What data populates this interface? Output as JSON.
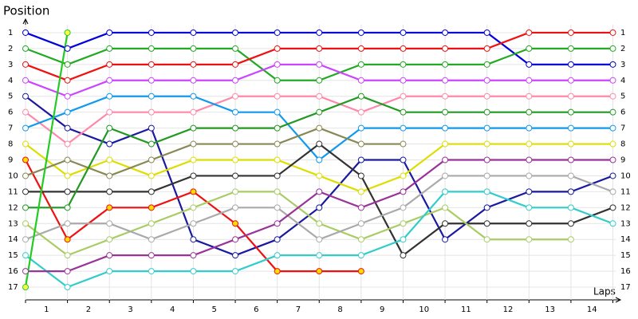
{
  "chart_data": {
    "type": "line",
    "title": "Position",
    "x_label": "Laps",
    "x": [
      0,
      1,
      2,
      3,
      4,
      5,
      6,
      7,
      8,
      9,
      10,
      11,
      12,
      13,
      14
    ],
    "xlim": [
      0,
      14.15
    ],
    "xticks": [
      {
        "value": 0.5,
        "label": "1"
      },
      {
        "value": 1.5,
        "label": "2"
      },
      {
        "value": 2.5,
        "label": "3"
      },
      {
        "value": 3.5,
        "label": "4"
      },
      {
        "value": 4.5,
        "label": "5"
      },
      {
        "value": 5.5,
        "label": "6"
      },
      {
        "value": 6.5,
        "label": "7"
      },
      {
        "value": 7.5,
        "label": "8"
      },
      {
        "value": 8.5,
        "label": "9"
      },
      {
        "value": 9.5,
        "label": "10"
      },
      {
        "value": 10.5,
        "label": "11"
      },
      {
        "value": 11.5,
        "label": "12"
      },
      {
        "value": 12.5,
        "label": "13"
      },
      {
        "value": 13.5,
        "label": "14"
      }
    ],
    "ylim": [
      0.2,
      17.8
    ],
    "y_inverted": true,
    "yticks": [
      1,
      2,
      3,
      4,
      5,
      6,
      7,
      8,
      9,
      10,
      11,
      12,
      13,
      14,
      15,
      16,
      17
    ],
    "grid": true,
    "series": [
      {
        "color": "#0000dd",
        "values": [
          1,
          2,
          1,
          1,
          1,
          1,
          1,
          1,
          1,
          1,
          1,
          1,
          3,
          3,
          3
        ]
      },
      {
        "color": "#22aa22",
        "values": [
          2,
          3,
          2,
          2,
          2,
          2,
          4,
          4,
          3,
          3,
          3,
          3,
          2,
          2,
          2
        ]
      },
      {
        "color": "#ee1111",
        "values": [
          3,
          4,
          3,
          3,
          3,
          3,
          2,
          2,
          2,
          2,
          2,
          2,
          1,
          1,
          1
        ]
      },
      {
        "color": "#cc44ff",
        "values": [
          4,
          5,
          4,
          4,
          4,
          4,
          3,
          3,
          4,
          4,
          4,
          4,
          4,
          4,
          4
        ]
      },
      {
        "color": "#1a1aa0",
        "values": [
          5,
          7,
          8,
          7,
          14,
          15,
          14,
          12,
          9,
          9,
          14,
          12,
          11,
          11,
          10
        ]
      },
      {
        "color": "#ff88aa",
        "values": [
          6,
          8,
          6,
          6,
          6,
          5,
          5,
          5,
          6,
          5,
          5,
          5,
          5,
          5,
          5
        ]
      },
      {
        "color": "#1199ee",
        "values": [
          7,
          6,
          5,
          5,
          5,
          6,
          6,
          9,
          7,
          7,
          7,
          7,
          7,
          7,
          7
        ]
      },
      {
        "color": "#dddd00",
        "values": [
          8,
          10,
          9,
          10,
          9,
          9,
          9,
          10,
          11,
          10,
          8,
          8,
          8,
          8,
          8
        ]
      },
      {
        "color": "#ee1111",
        "marker_fill": "#ffdd00",
        "values": [
          9,
          14,
          12,
          12,
          11,
          13,
          16,
          16,
          16,
          null,
          null,
          null,
          null,
          null,
          null
        ]
      },
      {
        "color": "#888855",
        "values": [
          10,
          9,
          10,
          9,
          8,
          8,
          8,
          7,
          8,
          8,
          null,
          null,
          null,
          null,
          null
        ]
      },
      {
        "color": "#333333",
        "values": [
          11,
          11,
          11,
          11,
          10,
          10,
          10,
          8,
          10,
          15,
          13,
          13,
          13,
          13,
          12
        ]
      },
      {
        "color": "#229922",
        "values": [
          12,
          12,
          7,
          8,
          7,
          7,
          7,
          6,
          5,
          6,
          6,
          6,
          6,
          6,
          6
        ]
      },
      {
        "color": "#aacc66",
        "values": [
          13,
          15,
          14,
          13,
          12,
          11,
          11,
          13,
          14,
          13,
          12,
          14,
          14,
          14,
          null
        ]
      },
      {
        "color": "#aaaaaa",
        "values": [
          14,
          13,
          13,
          14,
          13,
          12,
          12,
          14,
          13,
          12,
          10,
          10,
          10,
          10,
          11
        ]
      },
      {
        "color": "#33cccc",
        "values": [
          15,
          17,
          16,
          16,
          16,
          16,
          15,
          15,
          15,
          14,
          11,
          11,
          12,
          12,
          13
        ]
      },
      {
        "color": "#993399",
        "values": [
          16,
          16,
          15,
          15,
          15,
          14,
          13,
          11,
          12,
          11,
          9,
          9,
          9,
          9,
          9
        ]
      },
      {
        "color": "#22cc22",
        "marker_fill": "#ffff44",
        "values": [
          17,
          1,
          null,
          null,
          null,
          null,
          null,
          null,
          null,
          null,
          null,
          null,
          null,
          null,
          null
        ]
      }
    ]
  }
}
